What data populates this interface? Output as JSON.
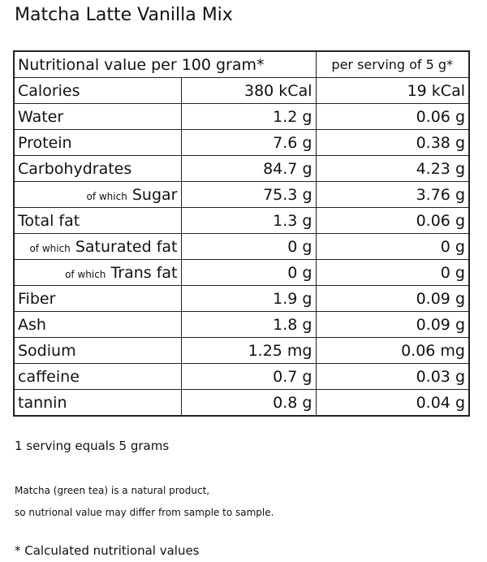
{
  "header": {
    "title": "Matcha Latte Vanilla Mix"
  },
  "table": {
    "columns": [
      "Nutritional value per 100 gram*",
      "per serving of 5 g*"
    ],
    "rows": [
      {
        "name": "Calories",
        "per_100g": "380 kCal",
        "per_serving": "19 kCal"
      },
      {
        "name": "Water",
        "per_100g": "1.2 g",
        "per_serving": "0.06 g"
      },
      {
        "name": "Protein",
        "per_100g": "7.6 g",
        "per_serving": "0.38 g"
      },
      {
        "name": "Carbohydrates",
        "per_100g": "84.7 g",
        "per_serving": "4.23 g"
      },
      {
        "prefix": "of which",
        "name": "Sugar",
        "per_100g": "75.3 g",
        "per_serving": "3.76 g"
      },
      {
        "name": "Total fat",
        "per_100g": "1.3 g",
        "per_serving": "0.06 g"
      },
      {
        "prefix": "of which",
        "name": "Saturated fat",
        "per_100g": "0 g",
        "per_serving": "0 g"
      },
      {
        "prefix": "of which",
        "name": "Trans fat",
        "per_100g": "0 g",
        "per_serving": "0 g"
      },
      {
        "name": "Fiber",
        "per_100g": "1.9 g",
        "per_serving": "0.09 g"
      },
      {
        "name": "Ash",
        "per_100g": "1.8 g",
        "per_serving": "0.09 g"
      },
      {
        "name": "Sodium",
        "per_100g": "1.25 mg",
        "per_serving": "0.06 mg"
      },
      {
        "name": "caffeine",
        "per_100g": "0.7 g",
        "per_serving": "0.03 g"
      },
      {
        "name": "tannin",
        "per_100g": "0.8 g",
        "per_serving": "0.04 g"
      }
    ]
  },
  "footer": {
    "serving": "1 serving equals 5 grams",
    "note": [
      "Matcha (green tea) is a natural product,",
      "so nutrional value may differ from sample to sample."
    ],
    "footnote": "* Calculated nutritional values"
  }
}
